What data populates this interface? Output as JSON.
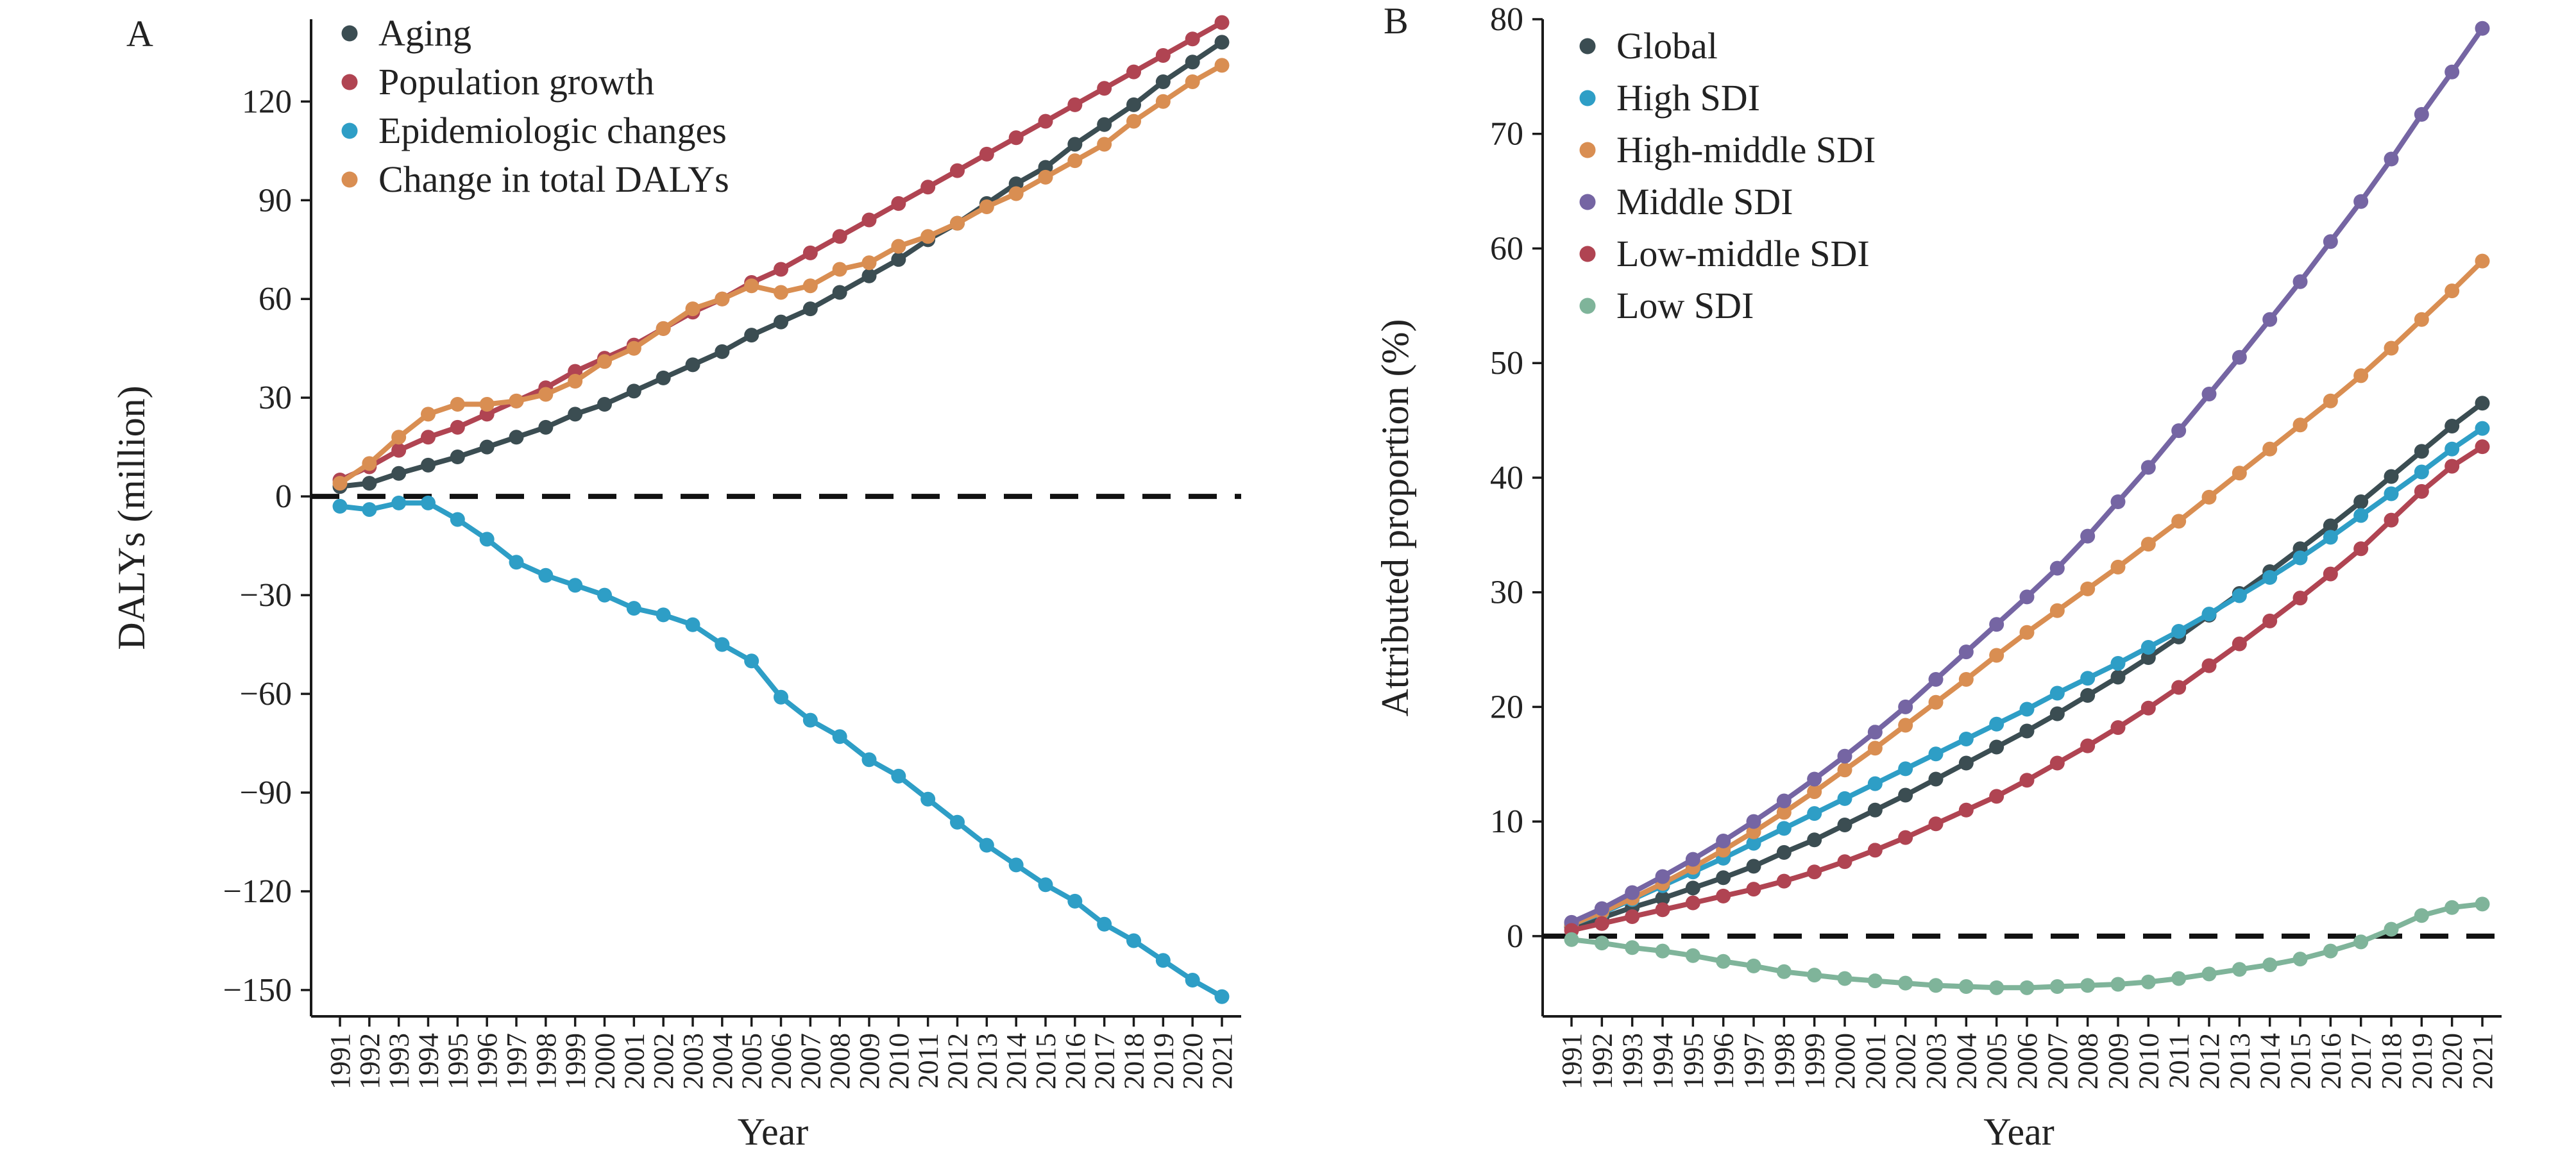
{
  "chart_data": [
    {
      "type": "line",
      "panel_label": "A",
      "xlabel": "Year",
      "ylabel": "DALYs (million)",
      "ylim": [
        -158,
        145
      ],
      "yticks": [
        -150,
        -120,
        -90,
        -60,
        -30,
        0,
        30,
        60,
        90,
        120
      ],
      "ytick_labels": [
        "−150",
        "−120",
        "−90",
        "−60",
        "−30",
        "0",
        "30",
        "60",
        "90",
        "120"
      ],
      "zero_line": true,
      "legend_position": "top-left",
      "x": [
        1991,
        1992,
        1993,
        1994,
        1995,
        1996,
        1997,
        1998,
        1999,
        2000,
        2001,
        2002,
        2003,
        2004,
        2005,
        2006,
        2007,
        2008,
        2009,
        2010,
        2011,
        2012,
        2013,
        2014,
        2015,
        2016,
        2017,
        2018,
        2019,
        2020,
        2021
      ],
      "series": [
        {
          "name": "Aging",
          "color": "#3b4d52",
          "values": [
            3,
            4,
            7,
            9.5,
            12,
            15,
            18,
            21,
            25,
            28,
            32,
            36,
            40,
            44,
            49,
            53,
            57,
            62,
            67,
            72,
            78,
            83,
            89,
            95,
            100,
            107,
            113,
            119,
            126,
            132,
            138
          ]
        },
        {
          "name": "Population growth",
          "color": "#b04452",
          "values": [
            5,
            9,
            14,
            18,
            21,
            25,
            29,
            33,
            38,
            42,
            46,
            51,
            56,
            60,
            65,
            69,
            74,
            79,
            84,
            89,
            94,
            99,
            104,
            109,
            114,
            119,
            124,
            129,
            134,
            139,
            144
          ]
        },
        {
          "name": "Epidemiologic changes",
          "color": "#2e9ec6",
          "values": [
            -3,
            -4,
            -2,
            -2,
            -7,
            -13,
            -20,
            -24,
            -27,
            -30,
            -34,
            -36,
            -39,
            -45,
            -50,
            -61,
            -68,
            -73,
            -80,
            -85,
            -92,
            -99,
            -106,
            -112,
            -118,
            -123,
            -130,
            -135,
            -141,
            -147,
            -152
          ]
        },
        {
          "name": "Change in total DALYs",
          "color": "#d98e52",
          "values": [
            4,
            10,
            18,
            25,
            28,
            28,
            29,
            31,
            35,
            41,
            45,
            51,
            57,
            60,
            64,
            62,
            64,
            69,
            71,
            76,
            79,
            83,
            88,
            92,
            97,
            102,
            107,
            114,
            120,
            126,
            131
          ]
        }
      ]
    },
    {
      "type": "line",
      "panel_label": "B",
      "xlabel": "Year",
      "ylabel": "Attributed proportion (%)",
      "ylim": [
        -7,
        80
      ],
      "yticks": [
        0,
        10,
        20,
        30,
        40,
        50,
        60,
        70,
        80
      ],
      "ytick_labels": [
        "0",
        "10",
        "20",
        "30",
        "40",
        "50",
        "60",
        "70",
        "80"
      ],
      "zero_line": true,
      "legend_position": "top-left",
      "x": [
        1991,
        1992,
        1993,
        1994,
        1995,
        1996,
        1997,
        1998,
        1999,
        2000,
        2001,
        2002,
        2003,
        2004,
        2005,
        2006,
        2007,
        2008,
        2009,
        2010,
        2011,
        2012,
        2013,
        2014,
        2015,
        2016,
        2017,
        2018,
        2019,
        2020,
        2021
      ],
      "series": [
        {
          "name": "Global",
          "color": "#3b4d52",
          "values": [
            0.8,
            1.6,
            2.5,
            3.3,
            4.2,
            5.1,
            6.1,
            7.3,
            8.4,
            9.7,
            11.0,
            12.3,
            13.7,
            15.1,
            16.5,
            17.9,
            19.4,
            21.0,
            22.6,
            24.3,
            26.1,
            28.0,
            29.9,
            31.8,
            33.8,
            35.8,
            37.9,
            40.1,
            42.3,
            44.5,
            46.5
          ]
        },
        {
          "name": "High SDI",
          "color": "#2e9ec6",
          "values": [
            1.0,
            2.0,
            3.2,
            4.4,
            5.6,
            6.8,
            8.1,
            9.4,
            10.7,
            12.0,
            13.3,
            14.6,
            15.9,
            17.2,
            18.5,
            19.8,
            21.2,
            22.5,
            23.8,
            25.2,
            26.6,
            28.1,
            29.7,
            31.3,
            33.0,
            34.8,
            36.7,
            38.6,
            40.5,
            42.5,
            44.3
          ]
        },
        {
          "name": "High-middle SDI",
          "color": "#d98e52",
          "values": [
            1.0,
            2.1,
            3.3,
            4.6,
            6.0,
            7.5,
            9.1,
            10.8,
            12.6,
            14.5,
            16.4,
            18.4,
            20.4,
            22.4,
            24.5,
            26.5,
            28.4,
            30.3,
            32.2,
            34.2,
            36.2,
            38.3,
            40.4,
            42.5,
            44.6,
            46.7,
            48.9,
            51.3,
            53.8,
            56.3,
            58.9
          ]
        },
        {
          "name": "Middle SDI",
          "color": "#7565a3",
          "values": [
            1.2,
            2.4,
            3.8,
            5.2,
            6.7,
            8.3,
            10.0,
            11.8,
            13.7,
            15.7,
            17.8,
            20.0,
            22.4,
            24.8,
            27.2,
            29.6,
            32.1,
            34.9,
            37.9,
            40.9,
            44.1,
            47.3,
            50.5,
            53.8,
            57.1,
            60.6,
            64.1,
            67.8,
            71.7,
            75.4,
            79.2
          ]
        },
        {
          "name": "Low-middle SDI",
          "color": "#b04452",
          "values": [
            0.5,
            1.1,
            1.7,
            2.3,
            2.9,
            3.5,
            4.1,
            4.8,
            5.6,
            6.5,
            7.5,
            8.6,
            9.8,
            11.0,
            12.2,
            13.6,
            15.1,
            16.6,
            18.2,
            19.9,
            21.7,
            23.6,
            25.5,
            27.5,
            29.5,
            31.6,
            33.8,
            36.3,
            38.8,
            41.0,
            42.7
          ]
        },
        {
          "name": "Low SDI",
          "color": "#7fb49a",
          "values": [
            -0.3,
            -0.6,
            -1.0,
            -1.3,
            -1.7,
            -2.2,
            -2.6,
            -3.1,
            -3.4,
            -3.7,
            -3.9,
            -4.1,
            -4.3,
            -4.4,
            -4.5,
            -4.5,
            -4.4,
            -4.3,
            -4.2,
            -4.0,
            -3.7,
            -3.3,
            -2.9,
            -2.5,
            -2.0,
            -1.3,
            -0.5,
            0.6,
            1.8,
            2.5,
            2.8
          ]
        }
      ]
    }
  ]
}
